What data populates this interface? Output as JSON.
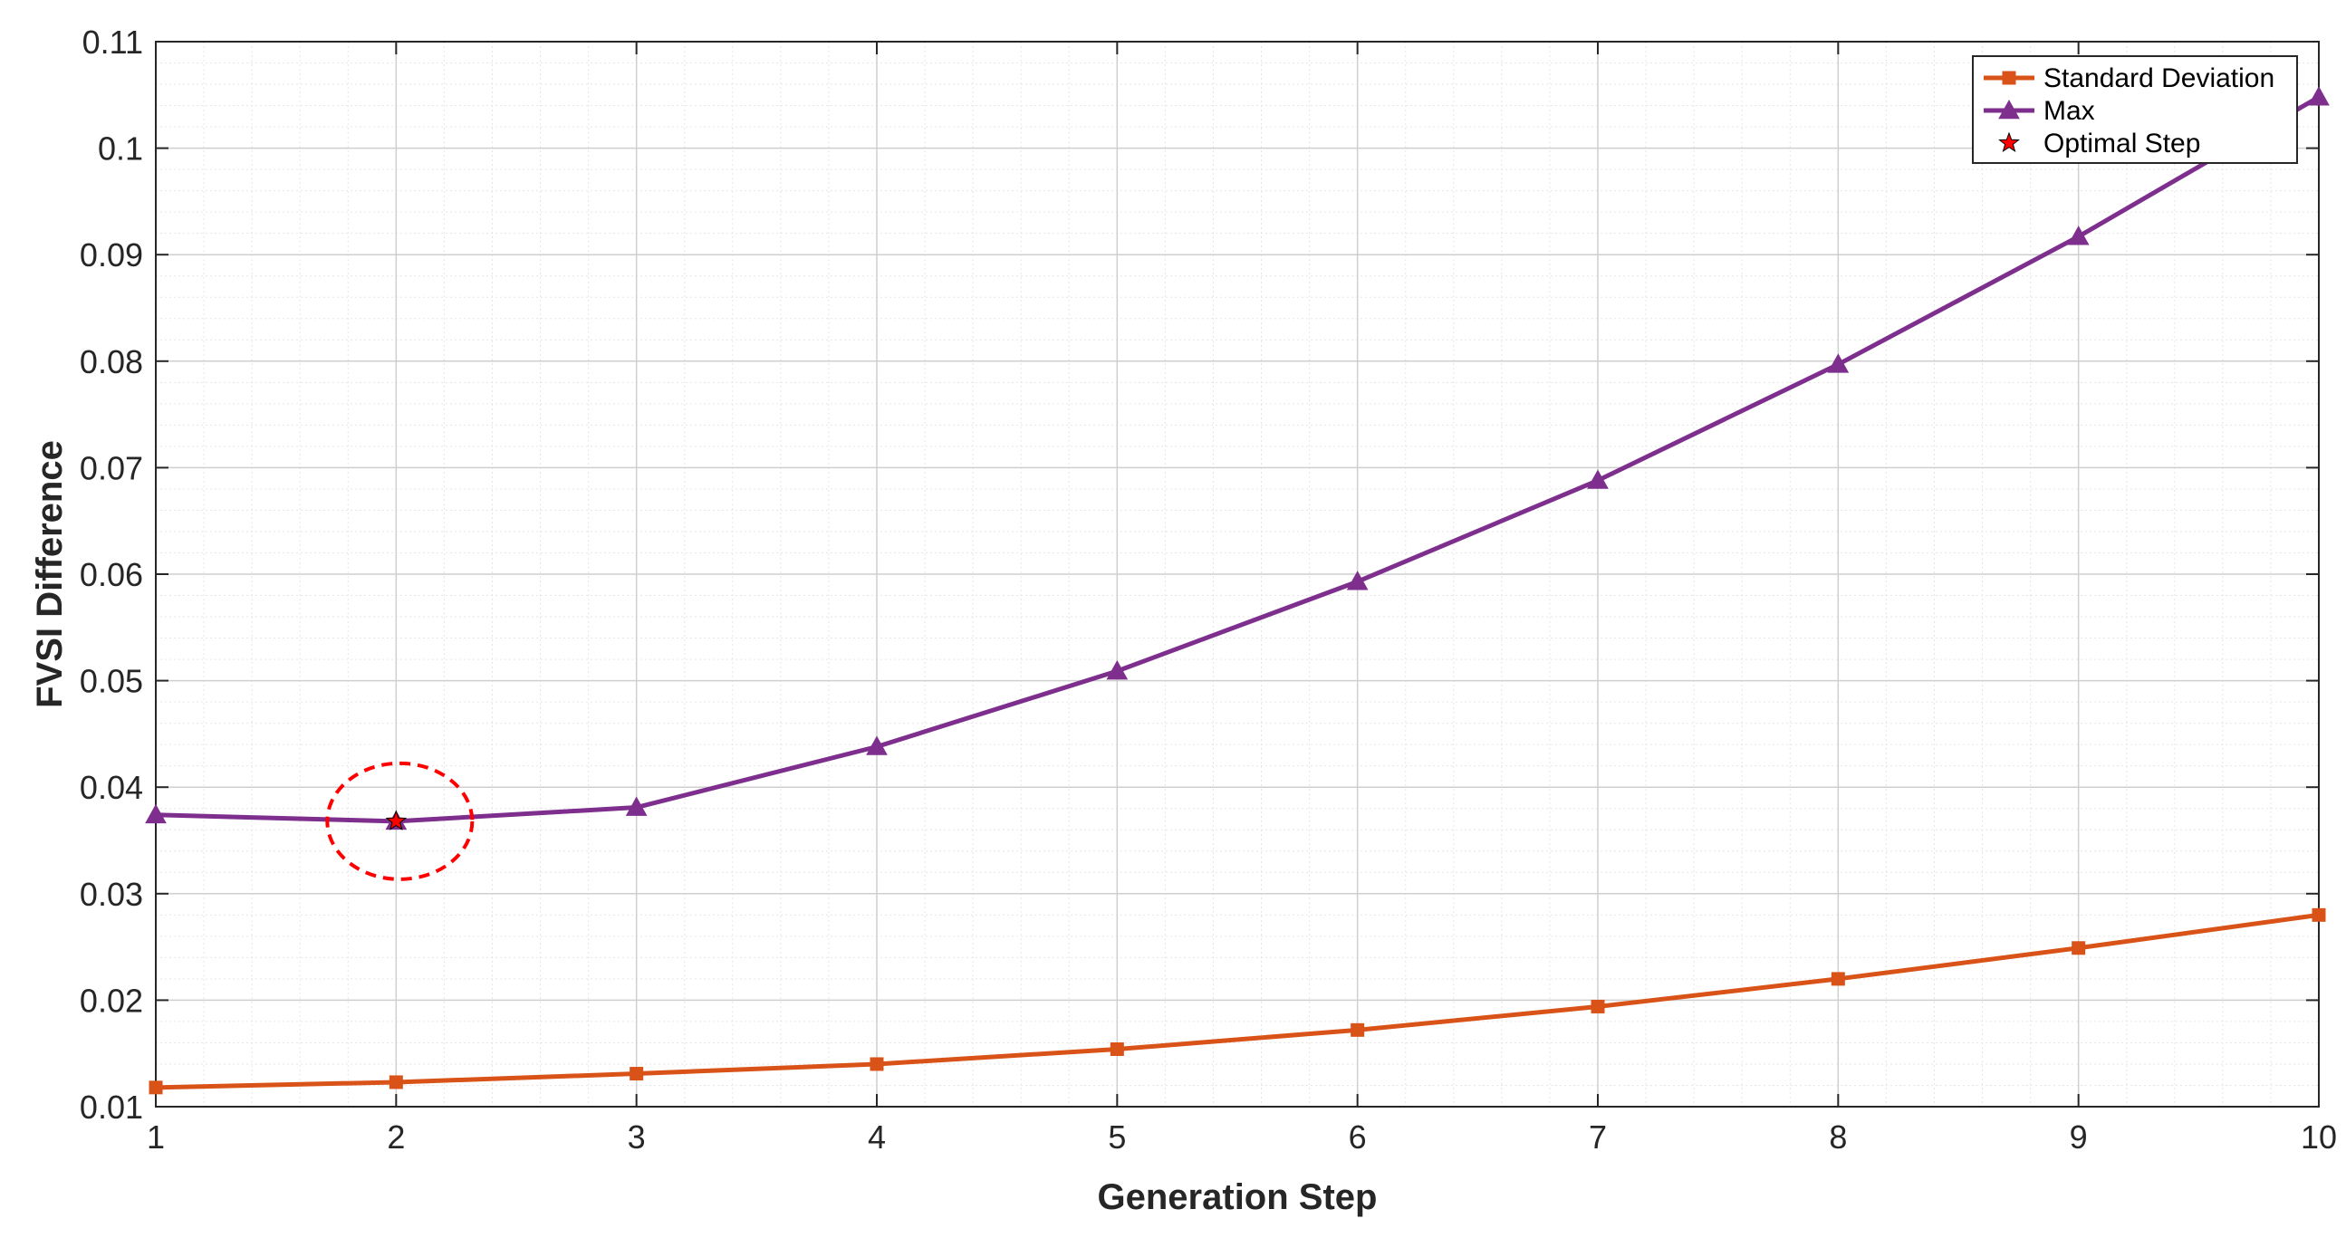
{
  "chart_data": {
    "type": "line",
    "xlabel": "Generation Step",
    "ylabel": "FVSI Difference",
    "xlim": [
      1,
      10
    ],
    "ylim": [
      0.01,
      0.11
    ],
    "xticks": [
      1,
      2,
      3,
      4,
      5,
      6,
      7,
      8,
      9,
      10
    ],
    "yticks": [
      0.01,
      0.02,
      0.03,
      0.04,
      0.05,
      0.06,
      0.07,
      0.08,
      0.09,
      0.1,
      0.11
    ],
    "ytick_labels": [
      "0.01",
      "0.02",
      "0.03",
      "0.04",
      "0.05",
      "0.06",
      "0.07",
      "0.08",
      "0.09",
      "0.1",
      "0.11"
    ],
    "grid": true,
    "minor_grid": true,
    "legend_position": "top-right",
    "x": [
      1,
      2,
      3,
      4,
      5,
      6,
      7,
      8,
      9,
      10
    ],
    "series": [
      {
        "name": "Standard Deviation",
        "color": "#D95319",
        "marker": "square",
        "values": [
          0.0118,
          0.0123,
          0.0131,
          0.014,
          0.0154,
          0.0172,
          0.0194,
          0.022,
          0.0249,
          0.028
        ]
      },
      {
        "name": "Max",
        "color": "#7E2F8E",
        "marker": "triangle",
        "values": [
          0.0374,
          0.0368,
          0.0381,
          0.0438,
          0.0509,
          0.0593,
          0.0688,
          0.0797,
          0.0917,
          0.1048
        ]
      }
    ],
    "optimal_step": {
      "name": "Optimal Step",
      "x": 2,
      "y": 0.0368,
      "color": "#FF0000",
      "marker": "star",
      "highlight": "dashed-circle"
    }
  }
}
